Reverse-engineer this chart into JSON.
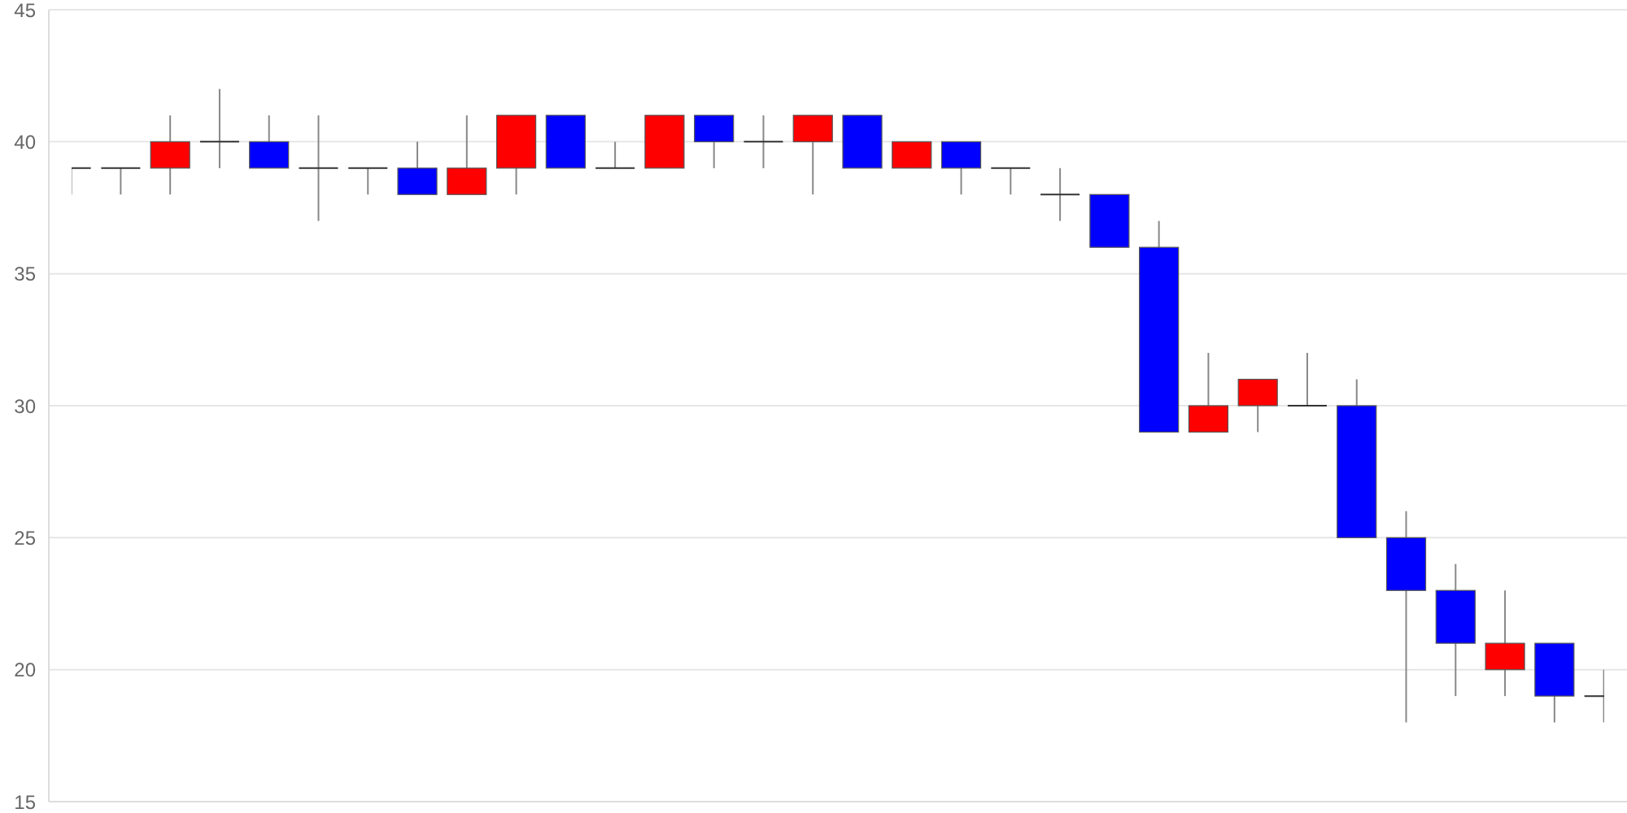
{
  "chart_data": {
    "type": "candlestick",
    "categories": [
      null,
      null,
      null,
      null,
      null,
      null,
      null,
      null,
      null,
      null,
      null,
      null,
      null,
      null,
      null,
      null,
      null,
      null,
      null,
      null,
      null,
      null,
      null,
      null,
      null,
      null,
      null,
      null,
      null,
      null,
      null,
      null
    ],
    "ohlc": [
      [
        39,
        39,
        38,
        39
      ],
      [
        39,
        39,
        38,
        39
      ],
      [
        39,
        41,
        38,
        40
      ],
      [
        40,
        42,
        39,
        40
      ],
      [
        40,
        41,
        39,
        39
      ],
      [
        39,
        41,
        37,
        39
      ],
      [
        39,
        39,
        38,
        39
      ],
      [
        39,
        40,
        38,
        38
      ],
      [
        38,
        41,
        38,
        39
      ],
      [
        39,
        41,
        38,
        41
      ],
      [
        41,
        41,
        39,
        39
      ],
      [
        39,
        40,
        39,
        39
      ],
      [
        39,
        41,
        39,
        41
      ],
      [
        41,
        41,
        39,
        40
      ],
      [
        40,
        41,
        39,
        40
      ],
      [
        40,
        41,
        38,
        41
      ],
      [
        41,
        41,
        39,
        39
      ],
      [
        39,
        40,
        39,
        40
      ],
      [
        40,
        40,
        38,
        39
      ],
      [
        39,
        39,
        38,
        39
      ],
      [
        38,
        39,
        37,
        38
      ],
      [
        38,
        38,
        36,
        36
      ],
      [
        36,
        37,
        29,
        29
      ],
      [
        29,
        32,
        29,
        30
      ],
      [
        30,
        31,
        29,
        31
      ],
      [
        30,
        32,
        30,
        30
      ],
      [
        30,
        31,
        25,
        25
      ],
      [
        25,
        26,
        18,
        23
      ],
      [
        23,
        24,
        19,
        21
      ],
      [
        20,
        23,
        19,
        21
      ],
      [
        21,
        21,
        18,
        19
      ],
      [
        19,
        20,
        18,
        19
      ]
    ],
    "colors": [
      "#333333",
      "#333333",
      "#ff0000",
      "#333333",
      "#0000ff",
      "#333333",
      "#333333",
      "#0000ff",
      "#ff0000",
      "#ff0000",
      "#0000ff",
      "#333333",
      "#ff0000",
      "#0000ff",
      "#333333",
      "#ff0000",
      "#0000ff",
      "#ff0000",
      "#0000ff",
      "#333333",
      "#333333",
      "#0000ff",
      "#0000ff",
      "#ff0000",
      "#ff0000",
      "#333333",
      "#0000ff",
      "#0000ff",
      "#0000ff",
      "#ff0000",
      "#0000ff",
      "#333333"
    ],
    "ylim": [
      15,
      45
    ],
    "yticks": [
      15,
      20,
      25,
      30,
      35,
      40,
      45
    ],
    "grid": "y",
    "tick_labels": "y"
  }
}
